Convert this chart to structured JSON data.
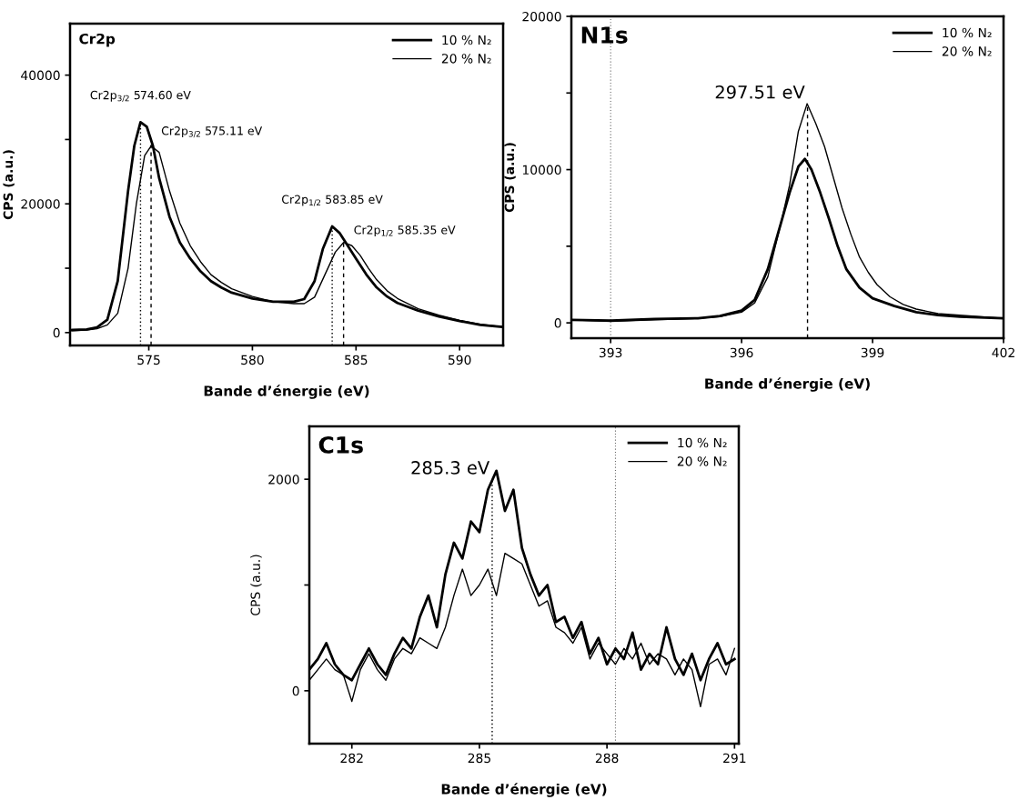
{
  "chart_data": [
    {
      "type": "line",
      "title": "Cr2p",
      "xlabel": "Bande d’énergie (eV)",
      "ylabel": "CPS (a.u.)",
      "xlim": [
        571.2,
        592.1
      ],
      "ylim": [
        -2000,
        48000
      ],
      "xticks": [
        575,
        580,
        585,
        590
      ],
      "yticks": [
        0,
        {
          "value": 10000,
          "label": null
        },
        20000,
        {
          "value": 30000,
          "label": null
        },
        40000
      ],
      "legend": "top right",
      "grid": false,
      "series": [
        {
          "name": "10 % N₂",
          "color": "#000000",
          "x": [
            571.3,
            572,
            572.5,
            573,
            573.5,
            574,
            574.3,
            574.6,
            574.9,
            575.2,
            575.5,
            576,
            576.5,
            577,
            577.5,
            578,
            578.5,
            579,
            580,
            581,
            582,
            582.5,
            583,
            583.4,
            583.85,
            584.2,
            584.6,
            585,
            585.5,
            586,
            586.5,
            587,
            588,
            589,
            590,
            591,
            592
          ],
          "values": [
            400,
            500,
            800,
            2000,
            8000,
            22000,
            29000,
            32700,
            32000,
            29000,
            24000,
            18000,
            14000,
            11500,
            9500,
            8000,
            7000,
            6200,
            5300,
            4800,
            4800,
            5200,
            8000,
            13000,
            16500,
            15500,
            13500,
            11500,
            9000,
            7000,
            5600,
            4600,
            3400,
            2500,
            1800,
            1200,
            900
          ]
        },
        {
          "name": "20 % N₂",
          "color": "#000000",
          "x": [
            571.3,
            572,
            572.5,
            573,
            573.5,
            574,
            574.4,
            574.8,
            575.11,
            575.5,
            576,
            576.5,
            577,
            577.5,
            578,
            578.5,
            579,
            580,
            581,
            582,
            582.5,
            583,
            583.5,
            584,
            584.4,
            584.8,
            585.2,
            585.6,
            586,
            586.5,
            587,
            588,
            589,
            590,
            591,
            592
          ],
          "values": [
            300,
            400,
            600,
            1200,
            3000,
            10000,
            20000,
            27500,
            29000,
            28000,
            22000,
            17000,
            13500,
            11000,
            9000,
            7800,
            6800,
            5600,
            4800,
            4500,
            4500,
            5500,
            9000,
            12500,
            14000,
            13500,
            12000,
            10000,
            8200,
            6500,
            5300,
            3700,
            2700,
            1900,
            1300,
            900
          ]
        }
      ],
      "ref_lines": [
        {
          "axis": "x",
          "value": 574.6,
          "label": "Cr2p$_{3/2}$ 574.60 eV",
          "line_style": "dotted"
        },
        {
          "axis": "x",
          "value": 575.11,
          "label": "Cr2p$_{3/2}$ 575.11 eV",
          "line_style": "dashed"
        },
        {
          "axis": "x",
          "value": 583.85,
          "label": "Cr2p$_{1/2}$ 583.85 eV",
          "line_style": "dotted"
        },
        {
          "axis": "x",
          "value": 584.4,
          "label": "Cr2p$_{1/2}$ 585.35 eV",
          "line_style": "dashed"
        }
      ]
    },
    {
      "type": "line",
      "title": "N1s",
      "xlabel": "Bande d’énergie (eV)",
      "ylabel": "CPS (a.u.)",
      "xlim": [
        392.1,
        402
      ],
      "ylim": [
        -1000,
        20000
      ],
      "xticks": [
        393,
        396,
        399,
        402
      ],
      "yticks": [
        0,
        {
          "value": 5000,
          "label": null
        },
        10000,
        {
          "value": 15000,
          "label": null
        },
        20000
      ],
      "legend": "top right",
      "grid": false,
      "series": [
        {
          "name": "10 % N₂",
          "color": "#000000",
          "x": [
            392.1,
            393,
            394,
            395,
            395.5,
            396,
            396.3,
            396.6,
            396.9,
            397.1,
            397.3,
            397.45,
            397.6,
            397.8,
            398,
            398.2,
            398.4,
            398.7,
            399,
            399.5,
            400,
            400.5,
            401,
            402
          ],
          "values": [
            200,
            150,
            250,
            300,
            450,
            800,
            1500,
            3500,
            6500,
            8500,
            10200,
            10700,
            10000,
            8500,
            6800,
            5000,
            3500,
            2300,
            1600,
            1100,
            700,
            500,
            400,
            300
          ]
        },
        {
          "name": "20 % N₂",
          "color": "#000000",
          "x": [
            392.1,
            393,
            394,
            395,
            395.5,
            396,
            396.3,
            396.6,
            396.9,
            397.1,
            397.3,
            397.5,
            397.7,
            397.9,
            398.1,
            398.3,
            398.5,
            398.7,
            398.9,
            399.1,
            399.4,
            399.7,
            400,
            400.5,
            401,
            402
          ],
          "values": [
            200,
            100,
            200,
            300,
            400,
            700,
            1300,
            3000,
            6500,
            9000,
            12500,
            14300,
            13000,
            11500,
            9500,
            7500,
            5800,
            4300,
            3300,
            2500,
            1700,
            1200,
            900,
            600,
            500,
            300
          ]
        }
      ],
      "ref_lines": [
        {
          "axis": "x",
          "value": 397.51,
          "label": "297.51 eV",
          "line_style": "dashed"
        },
        {
          "axis": "x",
          "value": 393,
          "line_style": "dotted"
        }
      ]
    },
    {
      "type": "line",
      "title": "C1s",
      "xlabel": "Bande d’énergie (eV)",
      "ylabel": "CPS (a.u.)",
      "xlim": [
        281,
        291.1
      ],
      "ylim": [
        -500,
        2500
      ],
      "xticks": [
        282,
        285,
        288,
        291
      ],
      "yticks": [
        0,
        {
          "value": 1000,
          "label": null
        },
        2000
      ],
      "legend": "top right",
      "grid": false,
      "series": [
        {
          "name": "10 % N₂",
          "color": "#000000",
          "x": [
            281.0,
            281.2,
            281.4,
            281.6,
            281.8,
            282.0,
            282.2,
            282.4,
            282.6,
            282.8,
            283.0,
            283.2,
            283.4,
            283.6,
            283.8,
            284.0,
            284.2,
            284.4,
            284.6,
            284.8,
            285.0,
            285.2,
            285.4,
            285.6,
            285.8,
            286.0,
            286.2,
            286.4,
            286.6,
            286.8,
            287.0,
            287.2,
            287.4,
            287.6,
            287.8,
            288.0,
            288.2,
            288.4,
            288.6,
            288.8,
            289.0,
            289.2,
            289.4,
            289.6,
            289.8,
            290.0,
            290.2,
            290.4,
            290.6,
            290.8,
            291.0
          ],
          "values": [
            200,
            300,
            450,
            250,
            150,
            100,
            250,
            400,
            250,
            150,
            350,
            500,
            400,
            700,
            900,
            600,
            1100,
            1400,
            1250,
            1600,
            1500,
            1900,
            2080,
            1700,
            1900,
            1350,
            1100,
            900,
            1000,
            650,
            700,
            500,
            650,
            350,
            500,
            250,
            400,
            300,
            550,
            200,
            350,
            250,
            600,
            300,
            150,
            350,
            100,
            300,
            450,
            250,
            300
          ]
        },
        {
          "name": "20 % N₂",
          "color": "#000000",
          "x": [
            281.0,
            281.2,
            281.4,
            281.6,
            281.8,
            282.0,
            282.2,
            282.4,
            282.6,
            282.8,
            283.0,
            283.2,
            283.4,
            283.6,
            283.8,
            284.0,
            284.2,
            284.4,
            284.6,
            284.8,
            285.0,
            285.2,
            285.4,
            285.6,
            285.8,
            286.0,
            286.2,
            286.4,
            286.6,
            286.8,
            287.0,
            287.2,
            287.4,
            287.6,
            287.8,
            288.0,
            288.2,
            288.4,
            288.6,
            288.8,
            289.0,
            289.2,
            289.4,
            289.6,
            289.8,
            290.0,
            290.2,
            290.4,
            290.6,
            290.8,
            291.0
          ],
          "values": [
            100,
            200,
            300,
            200,
            150,
            -100,
            200,
            350,
            200,
            100,
            300,
            400,
            350,
            500,
            450,
            400,
            600,
            900,
            1150,
            900,
            1000,
            1150,
            900,
            1300,
            1250,
            1200,
            1000,
            800,
            850,
            600,
            550,
            450,
            600,
            300,
            450,
            350,
            250,
            400,
            300,
            450,
            250,
            350,
            300,
            150,
            300,
            200,
            -150,
            250,
            300,
            150,
            400
          ]
        }
      ],
      "ref_lines": [
        {
          "axis": "x",
          "value": 285.3,
          "label": "285.3 eV",
          "line_style": "dotted"
        },
        {
          "axis": "x",
          "value": 288.2,
          "line_style": "dotted"
        }
      ]
    }
  ]
}
